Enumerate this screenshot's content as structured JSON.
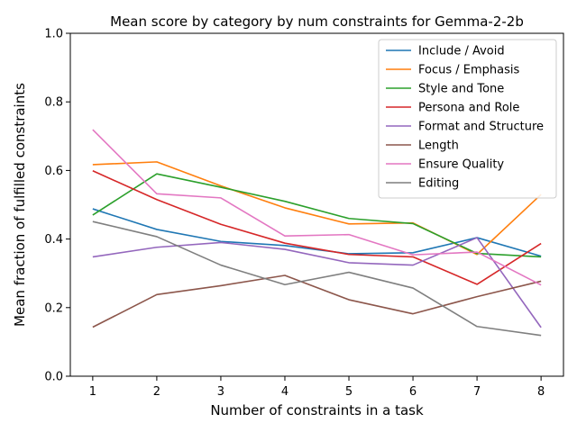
{
  "chart_data": {
    "type": "line",
    "title": "Mean score by category by num constraints for Gemma-2-2b",
    "xlabel": "Number of constraints in a task",
    "ylabel": "Mean fraction of fulfilled constraints",
    "x": [
      1,
      2,
      3,
      4,
      5,
      6,
      7,
      8
    ],
    "x_ticks": [
      "1",
      "2",
      "3",
      "4",
      "5",
      "6",
      "7",
      "8"
    ],
    "ylim": [
      0,
      1
    ],
    "y_ticks": [
      "0.0",
      "0.2",
      "0.4",
      "0.6",
      "0.8",
      "1.0"
    ],
    "grid": false,
    "legend_position": "top-right",
    "series": [
      {
        "name": "Include / Avoid",
        "color": "#1f77b4",
        "values": [
          0.488,
          0.428,
          0.393,
          0.381,
          0.357,
          0.36,
          0.404,
          0.35
        ]
      },
      {
        "name": "Focus / Emphasis",
        "color": "#ff7f0e",
        "values": [
          0.617,
          0.625,
          0.555,
          0.491,
          0.444,
          0.447,
          0.355,
          0.53
        ]
      },
      {
        "name": "Style and Tone",
        "color": "#2ca02c",
        "values": [
          0.47,
          0.59,
          0.551,
          0.51,
          0.46,
          0.445,
          0.358,
          0.348
        ]
      },
      {
        "name": "Persona and Role",
        "color": "#d62728",
        "values": [
          0.599,
          0.515,
          0.443,
          0.388,
          0.355,
          0.348,
          0.268,
          0.387
        ]
      },
      {
        "name": "Format and Structure",
        "color": "#9467bd",
        "values": [
          0.348,
          0.376,
          0.39,
          0.37,
          0.331,
          0.324,
          0.404,
          0.142
        ]
      },
      {
        "name": "Length",
        "color": "#8c564b",
        "values": [
          0.143,
          0.238,
          0.264,
          0.294,
          0.223,
          0.182,
          0.232,
          0.277
        ]
      },
      {
        "name": "Ensure Quality",
        "color": "#e377c2",
        "values": [
          0.719,
          0.532,
          0.52,
          0.409,
          0.413,
          0.354,
          0.362,
          0.266
        ]
      },
      {
        "name": "Editing",
        "color": "#7f7f7f",
        "values": [
          0.451,
          0.407,
          0.324,
          0.267,
          0.303,
          0.257,
          0.145,
          0.119
        ]
      }
    ]
  }
}
